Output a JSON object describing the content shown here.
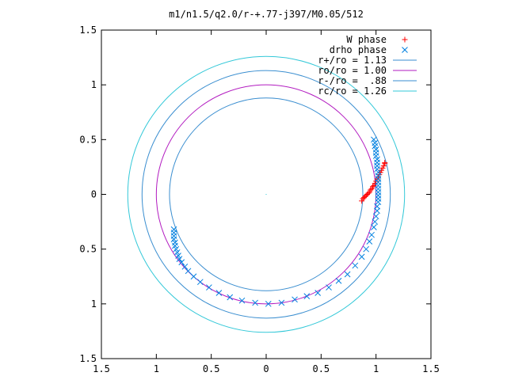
{
  "chart_data": {
    "type": "scatter",
    "title": "m1/n1.5/q2.0/r-+.77-j397/M0.05/512",
    "xlim": [
      -1.5,
      1.5
    ],
    "ylim": [
      -1.5,
      1.5
    ],
    "x_ticks": [
      {
        "value": -1.5,
        "label": "1.5"
      },
      {
        "value": -1.0,
        "label": "1"
      },
      {
        "value": -0.5,
        "label": "0.5"
      },
      {
        "value": 0,
        "label": "0"
      },
      {
        "value": 0.5,
        "label": "0.5"
      },
      {
        "value": 1.0,
        "label": "1"
      },
      {
        "value": 1.5,
        "label": "1.5"
      }
    ],
    "y_ticks": [
      {
        "value": 1.5,
        "label": "1.5"
      },
      {
        "value": 1.0,
        "label": "1"
      },
      {
        "value": 0.5,
        "label": "0.5"
      },
      {
        "value": 0,
        "label": "0"
      },
      {
        "value": -0.5,
        "label": "0.5"
      },
      {
        "value": -1.0,
        "label": "1"
      },
      {
        "value": -1.5,
        "label": "1.5"
      }
    ],
    "grid": false,
    "legend_position": "top-right",
    "circles": [
      {
        "name": "r+/ro = 1.13",
        "radius": 1.13,
        "color": "#3a8ed0"
      },
      {
        "name": "ro/ro = 1.00",
        "radius": 1.0,
        "color": "#b21bc0"
      },
      {
        "name": "r-/ro =  .88",
        "radius": 0.88,
        "color": "#3a8ed0"
      },
      {
        "name": "rc/ro = 1.26",
        "radius": 1.26,
        "color": "#33c8d8"
      }
    ],
    "series": [
      {
        "name": "W phase",
        "marker": "plus",
        "color": "#ff0000",
        "points": [
          [
            0.87,
            -0.06
          ],
          [
            0.88,
            -0.04
          ],
          [
            0.89,
            -0.03
          ],
          [
            0.9,
            -0.02
          ],
          [
            0.91,
            -0.01
          ],
          [
            0.92,
            0.0
          ],
          [
            0.93,
            0.01
          ],
          [
            0.94,
            0.02
          ],
          [
            0.95,
            0.04
          ],
          [
            0.96,
            0.05
          ],
          [
            0.97,
            0.07
          ],
          [
            0.98,
            0.08
          ],
          [
            0.99,
            0.1
          ],
          [
            1.0,
            0.12
          ],
          [
            1.01,
            0.14
          ],
          [
            1.02,
            0.16
          ],
          [
            1.03,
            0.18
          ],
          [
            1.04,
            0.2
          ],
          [
            1.05,
            0.22
          ],
          [
            1.06,
            0.24
          ],
          [
            1.07,
            0.26
          ],
          [
            1.08,
            0.28
          ],
          [
            1.08,
            0.29
          ]
        ]
      },
      {
        "name": "drho phase",
        "marker": "cross",
        "color": "#0080e0",
        "points": [
          [
            0.98,
            0.5
          ],
          [
            0.99,
            0.47
          ],
          [
            0.99,
            0.44
          ],
          [
            1.0,
            0.41
          ],
          [
            1.0,
            0.38
          ],
          [
            1.0,
            0.35
          ],
          [
            1.01,
            0.32
          ],
          [
            1.01,
            0.29
          ],
          [
            1.01,
            0.26
          ],
          [
            1.01,
            0.23
          ],
          [
            1.02,
            0.2
          ],
          [
            1.02,
            0.17
          ],
          [
            1.02,
            0.14
          ],
          [
            1.02,
            0.11
          ],
          [
            1.02,
            0.08
          ],
          [
            1.02,
            0.05
          ],
          [
            1.02,
            0.02
          ],
          [
            1.02,
            -0.01
          ],
          [
            1.02,
            -0.04
          ],
          [
            1.02,
            -0.07
          ],
          [
            1.01,
            -0.11
          ],
          [
            1.01,
            -0.15
          ],
          [
            1.0,
            -0.2
          ],
          [
            0.99,
            -0.25
          ],
          [
            0.98,
            -0.3
          ],
          [
            0.96,
            -0.37
          ],
          [
            0.94,
            -0.43
          ],
          [
            0.91,
            -0.5
          ],
          [
            0.87,
            -0.57
          ],
          [
            0.81,
            -0.65
          ],
          [
            0.74,
            -0.73
          ],
          [
            0.66,
            -0.79
          ],
          [
            0.57,
            -0.85
          ],
          [
            0.47,
            -0.9
          ],
          [
            0.37,
            -0.93
          ],
          [
            0.26,
            -0.96
          ],
          [
            0.14,
            -0.99
          ],
          [
            0.02,
            -1.0
          ],
          [
            -0.1,
            -0.99
          ],
          [
            -0.22,
            -0.97
          ],
          [
            -0.33,
            -0.94
          ],
          [
            -0.43,
            -0.9
          ],
          [
            -0.52,
            -0.85
          ],
          [
            -0.6,
            -0.8
          ],
          [
            -0.66,
            -0.75
          ],
          [
            -0.71,
            -0.7
          ],
          [
            -0.74,
            -0.66
          ],
          [
            -0.77,
            -0.62
          ],
          [
            -0.79,
            -0.59
          ],
          [
            -0.8,
            -0.56
          ],
          [
            -0.81,
            -0.53
          ],
          [
            -0.82,
            -0.5
          ],
          [
            -0.83,
            -0.47
          ],
          [
            -0.83,
            -0.44
          ],
          [
            -0.84,
            -0.41
          ],
          [
            -0.84,
            -0.38
          ],
          [
            -0.84,
            -0.35
          ],
          [
            -0.84,
            -0.32
          ]
        ]
      }
    ]
  }
}
